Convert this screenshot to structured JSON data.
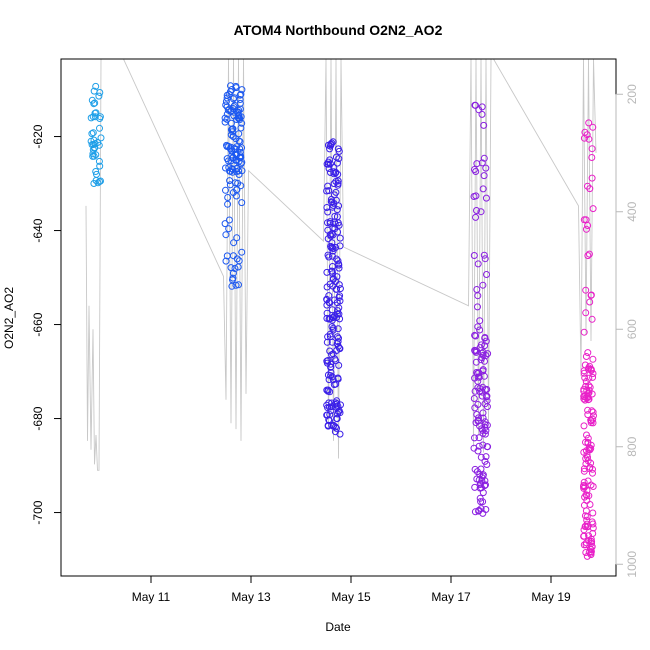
{
  "chart_data": {
    "type": "scatter",
    "title": "ATOM4 Northbound O2N2_AO2",
    "xlabel": "Date",
    "ylabel": "O2N2_AO2",
    "xlim": [
      9.2,
      20.3
    ],
    "ylim": [
      -713.5,
      -603.5
    ],
    "y2lim": [
      1020,
      140
    ],
    "x_ticks": [
      {
        "value": 11,
        "label": "May 11"
      },
      {
        "value": 13,
        "label": "May 13"
      },
      {
        "value": 15,
        "label": "May 15"
      },
      {
        "value": 17,
        "label": "May 17"
      },
      {
        "value": 19,
        "label": "May 19"
      }
    ],
    "y_ticks": [
      {
        "value": -620,
        "label": "-620"
      },
      {
        "value": -640,
        "label": "-640"
      },
      {
        "value": -660,
        "label": "-660"
      },
      {
        "value": -680,
        "label": "-680"
      },
      {
        "value": -700,
        "label": "-700"
      }
    ],
    "y2_ticks": [
      {
        "value": 200,
        "label": "200"
      },
      {
        "value": 400,
        "label": "400"
      },
      {
        "value": 600,
        "label": "600"
      },
      {
        "value": 800,
        "label": "800"
      },
      {
        "value": 1000,
        "label": "1000"
      }
    ],
    "grid": false,
    "clusters": [
      {
        "name": "cluster-may-9",
        "x_center": 9.9,
        "x_spread": 0.1,
        "color": "#1e9fe8",
        "segments": [
          [
            -607,
            -628,
            35
          ],
          [
            -628,
            -631,
            6
          ]
        ]
      },
      {
        "name": "cluster-may-12",
        "x_center": 12.65,
        "x_spread": 0.17,
        "color": "#1c58f0",
        "segments": [
          [
            -609,
            -632,
            110
          ],
          [
            -632,
            -652,
            25
          ]
        ]
      },
      {
        "name": "cluster-may-14",
        "x_center": 14.65,
        "x_spread": 0.14,
        "color": "#3a1fe8",
        "segments": [
          [
            -621,
            -684,
            200
          ]
        ]
      },
      {
        "name": "cluster-may-17",
        "x_center": 17.6,
        "x_spread": 0.14,
        "color": "#8a20e0",
        "segments": [
          [
            -613,
            -640,
            20
          ],
          [
            -644,
            -662,
            12
          ],
          [
            -662,
            -682,
            60
          ],
          [
            -682,
            -701,
            45
          ]
        ]
      },
      {
        "name": "cluster-may-19",
        "x_center": 19.75,
        "x_spread": 0.1,
        "color": "#e820c8",
        "segments": [
          [
            -617,
            -648,
            18
          ],
          [
            -648,
            -668,
            10
          ],
          [
            -668,
            -710,
            120
          ]
        ]
      }
    ],
    "depth_trace": [
      {
        "x": 9.7,
        "depth": 390
      },
      {
        "x": 9.73,
        "depth": 790
      },
      {
        "x": 9.76,
        "depth": 560
      },
      {
        "x": 9.8,
        "depth": 805
      },
      {
        "x": 9.84,
        "depth": 600
      },
      {
        "x": 9.87,
        "depth": 830
      },
      {
        "x": 9.9,
        "depth": 780
      },
      {
        "x": 9.93,
        "depth": 840
      },
      {
        "x": 9.96,
        "depth": 840
      },
      {
        "x": 10.0,
        "depth": 140
      },
      {
        "x": 10.45,
        "depth": 140
      },
      {
        "x": 12.45,
        "depth": 510
      },
      {
        "x": 12.5,
        "depth": 720
      },
      {
        "x": 12.55,
        "depth": 140
      },
      {
        "x": 12.6,
        "depth": 760
      },
      {
        "x": 12.65,
        "depth": 140
      },
      {
        "x": 12.7,
        "depth": 770
      },
      {
        "x": 12.75,
        "depth": 140
      },
      {
        "x": 12.8,
        "depth": 790
      },
      {
        "x": 12.85,
        "depth": 140
      },
      {
        "x": 12.9,
        "depth": 710
      },
      {
        "x": 12.95,
        "depth": 330
      },
      {
        "x": 14.45,
        "depth": 450
      },
      {
        "x": 14.5,
        "depth": 140
      },
      {
        "x": 14.55,
        "depth": 770
      },
      {
        "x": 14.6,
        "depth": 140
      },
      {
        "x": 14.65,
        "depth": 790
      },
      {
        "x": 14.7,
        "depth": 140
      },
      {
        "x": 14.75,
        "depth": 820
      },
      {
        "x": 14.8,
        "depth": 140
      },
      {
        "x": 14.85,
        "depth": 460
      },
      {
        "x": 17.35,
        "depth": 560
      },
      {
        "x": 17.4,
        "depth": 140
      },
      {
        "x": 17.45,
        "depth": 800
      },
      {
        "x": 17.5,
        "depth": 140
      },
      {
        "x": 17.55,
        "depth": 780
      },
      {
        "x": 17.6,
        "depth": 140
      },
      {
        "x": 17.65,
        "depth": 810
      },
      {
        "x": 17.7,
        "depth": 140
      },
      {
        "x": 17.75,
        "depth": 760
      },
      {
        "x": 17.8,
        "depth": 140
      },
      {
        "x": 17.85,
        "depth": 140
      },
      {
        "x": 19.55,
        "depth": 390
      },
      {
        "x": 19.6,
        "depth": 680
      },
      {
        "x": 19.65,
        "depth": 140
      },
      {
        "x": 19.7,
        "depth": 610
      },
      {
        "x": 19.75,
        "depth": 140
      },
      {
        "x": 19.8,
        "depth": 620
      },
      {
        "x": 19.85,
        "depth": 140
      },
      {
        "x": 19.9,
        "depth": 300
      }
    ],
    "colors": {
      "trace": "#c8c8c8",
      "axis": "#000000",
      "right_axis": "#b8b8b8"
    }
  }
}
